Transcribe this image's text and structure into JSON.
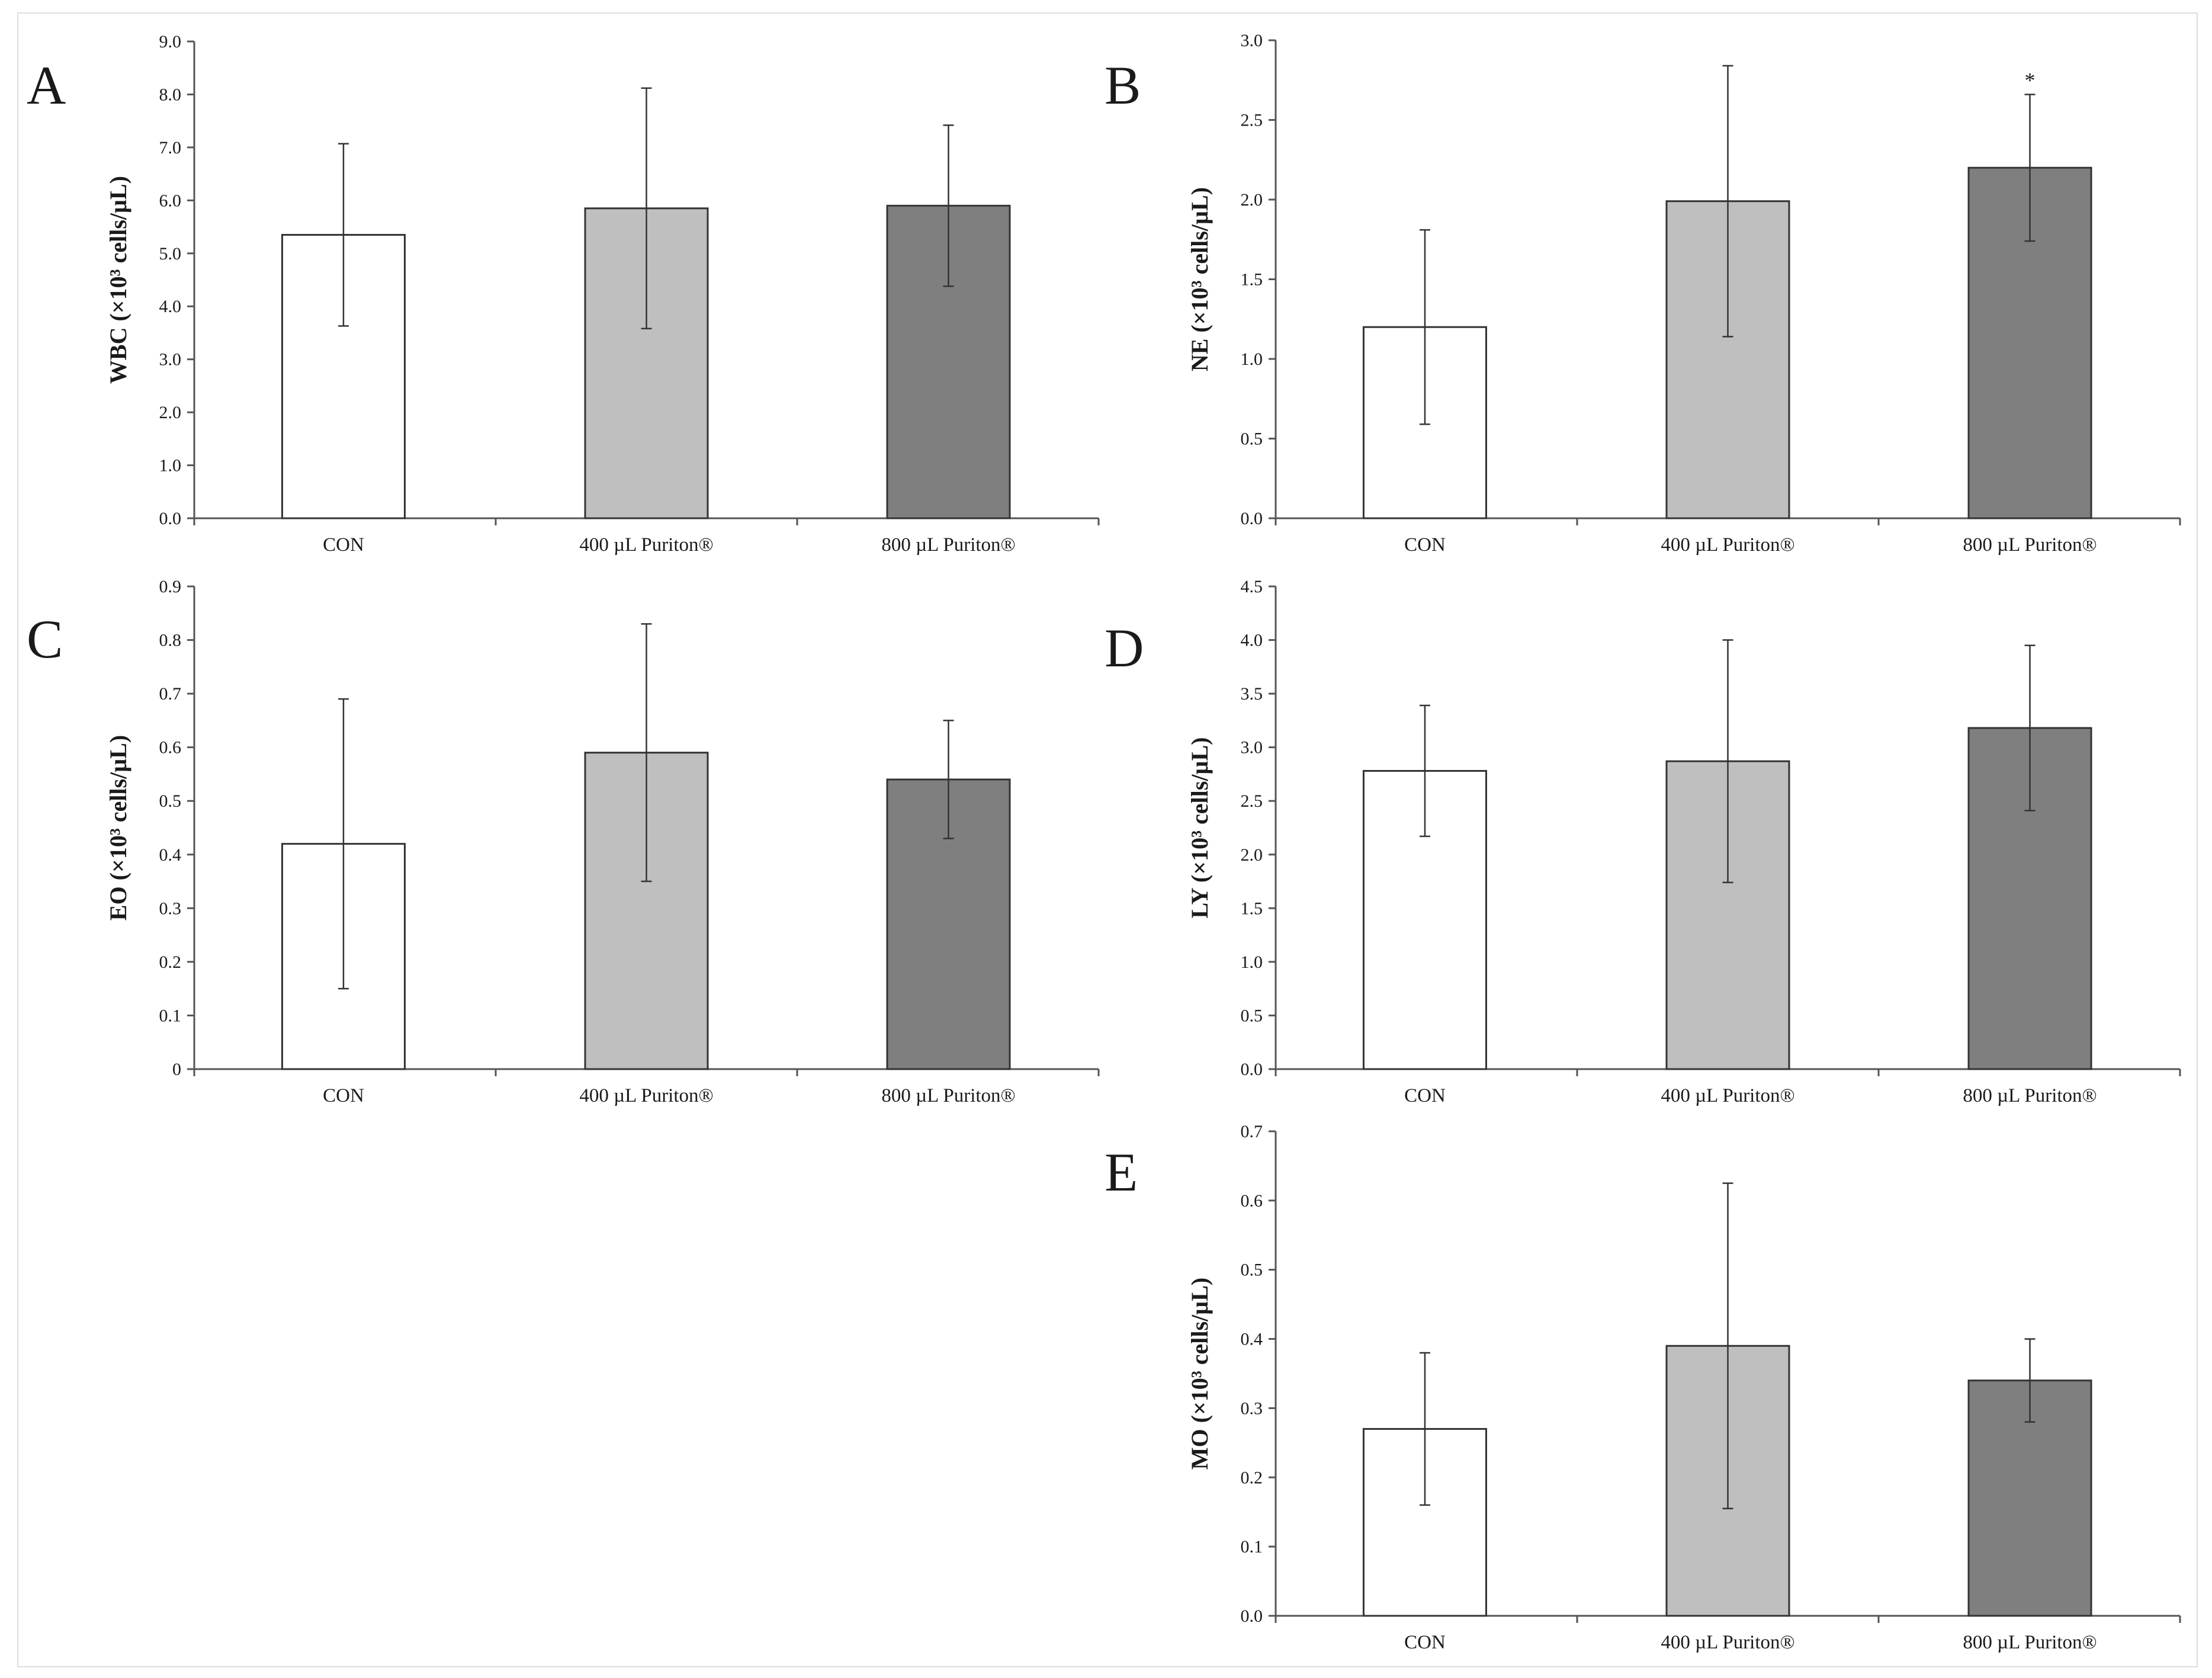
{
  "colors": {
    "CON": "#ffffff",
    "400 µL Puriton®": "#bfbfbf",
    "800 µL Puriton®": "#7f7f7f"
  },
  "chart_data": [
    {
      "panel": "A",
      "type": "bar",
      "ylabel": "WBC (×10³ cells/µL)",
      "ylim": [
        0,
        9
      ],
      "yticks": [
        "0.0",
        "1.0",
        "2.0",
        "3.0",
        "4.0",
        "5.0",
        "6.0",
        "7.0",
        "8.0",
        "9.0"
      ],
      "categories": [
        "CON",
        "400 µL Puriton®",
        "800 µL Puriton®"
      ],
      "values": [
        5.35,
        5.85,
        5.9
      ],
      "errors": [
        1.72,
        2.27,
        1.52
      ],
      "significance": [
        "",
        "",
        ""
      ]
    },
    {
      "panel": "B",
      "type": "bar",
      "ylabel": "NE (×10³ cells/µL)",
      "ylim": [
        0,
        3
      ],
      "yticks": [
        "0.0",
        "0.5",
        "1.0",
        "1.5",
        "2.0",
        "2.5",
        "3.0"
      ],
      "categories": [
        "CON",
        "400 µL Puriton®",
        "800 µL Puriton®"
      ],
      "values": [
        1.2,
        1.99,
        2.2
      ],
      "errors": [
        0.61,
        0.85,
        0.46
      ],
      "significance": [
        "",
        "",
        "*"
      ]
    },
    {
      "panel": "C",
      "type": "bar",
      "ylabel": "EO (×10³ cells/µL)",
      "ylim": [
        0,
        0.9
      ],
      "yticks": [
        "0",
        "0.1",
        "0.2",
        "0.3",
        "0.4",
        "0.5",
        "0.6",
        "0.7",
        "0.8",
        "0.9"
      ],
      "categories": [
        "CON",
        "400 µL Puriton®",
        "800 µL Puriton®"
      ],
      "values": [
        0.42,
        0.59,
        0.54
      ],
      "errors": [
        0.27,
        0.24,
        0.11
      ],
      "significance": [
        "",
        "",
        ""
      ]
    },
    {
      "panel": "D",
      "type": "bar",
      "ylabel": "LY (×10³ cells/µL)",
      "ylim": [
        0,
        4.5
      ],
      "yticks": [
        "0.0",
        "0.5",
        "1.0",
        "1.5",
        "2.0",
        "2.5",
        "3.0",
        "3.5",
        "4.0",
        "4.5"
      ],
      "categories": [
        "CON",
        "400 µL Puriton®",
        "800 µL Puriton®"
      ],
      "values": [
        2.78,
        2.87,
        3.18
      ],
      "errors": [
        0.61,
        1.13,
        0.77
      ],
      "significance": [
        "",
        "",
        ""
      ]
    },
    {
      "panel": "E",
      "type": "bar",
      "ylabel": "MO (×10³ cells/µL)",
      "ylim": [
        0,
        0.7
      ],
      "yticks": [
        "0.0",
        "0.1",
        "0.2",
        "0.3",
        "0.4",
        "0.5",
        "0.6",
        "0.7"
      ],
      "categories": [
        "CON",
        "400 µL Puriton®",
        "800 µL Puriton®"
      ],
      "values": [
        0.27,
        0.39,
        0.34
      ],
      "errors": [
        0.11,
        0.235,
        0.06
      ],
      "significance": [
        "",
        "",
        ""
      ]
    }
  ]
}
